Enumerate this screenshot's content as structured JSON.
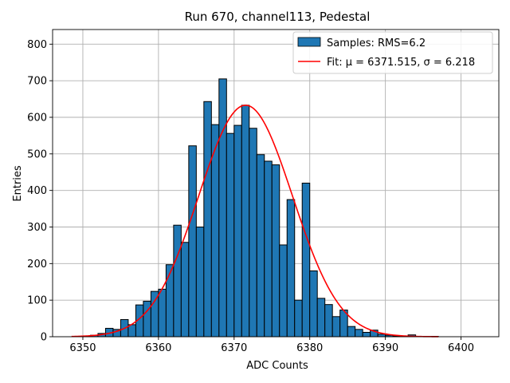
{
  "chart_data": {
    "type": "bar",
    "title": "Run 670, channel113, Pedestal",
    "xlabel": "ADC Counts",
    "ylabel": "Entries",
    "xlim": [
      6346,
      6405
    ],
    "ylim": [
      0,
      840
    ],
    "xticks": [
      6350,
      6360,
      6370,
      6380,
      6390,
      6400
    ],
    "yticks": [
      0,
      100,
      200,
      300,
      400,
      500,
      600,
      700,
      800
    ],
    "grid": true,
    "legend": {
      "placement": "top-right",
      "entries": [
        {
          "label": "Samples: RMS=6.2",
          "kind": "patch",
          "color": "#1f77b4"
        },
        {
          "label": "Fit: μ = 6371.515, σ = 6.218",
          "kind": "line",
          "color": "#ff0000"
        }
      ]
    },
    "series": [
      {
        "name": "Samples: RMS=6.2",
        "kind": "histogram",
        "color": "#1f77b4",
        "bins_start": 6348.0,
        "bin_width": 1.0,
        "values": [
          0,
          0,
          2,
          4,
          9,
          23,
          20,
          47,
          33,
          87,
          97,
          124,
          130,
          197,
          305,
          258,
          522,
          300,
          643,
          580,
          705,
          556,
          578,
          633,
          570,
          498,
          480,
          470,
          251,
          375,
          100,
          420,
          180,
          105,
          88,
          55,
          73,
          28,
          20,
          12,
          18,
          7,
          4,
          2,
          1,
          5,
          1,
          0,
          1
        ]
      },
      {
        "name": "Fit: μ = 6371.515, σ = 6.218",
        "kind": "gaussian-fit",
        "color": "#ff0000",
        "mu": 6371.515,
        "sigma": 6.218,
        "amplitude": 633,
        "x_range": [
          6348.5,
          6397
        ]
      }
    ]
  }
}
